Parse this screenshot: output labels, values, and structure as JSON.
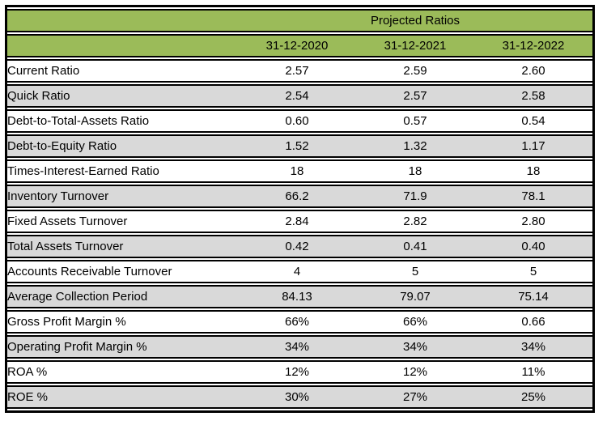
{
  "table": {
    "title": "Projected Ratios",
    "columns": [
      "31-12-2020",
      "31-12-2021",
      "31-12-2022"
    ],
    "rows": [
      {
        "label": "Current Ratio",
        "values": [
          "2.57",
          "2.59",
          "2.60"
        ]
      },
      {
        "label": "Quick Ratio",
        "values": [
          "2.54",
          "2.57",
          "2.58"
        ]
      },
      {
        "label": "Debt-to-Total-Assets Ratio",
        "values": [
          "0.60",
          "0.57",
          "0.54"
        ]
      },
      {
        "label": "Debt-to-Equity Ratio",
        "values": [
          "1.52",
          "1.32",
          "1.17"
        ]
      },
      {
        "label": "Times-Interest-Earned Ratio",
        "values": [
          "18",
          "18",
          "18"
        ]
      },
      {
        "label": "Inventory Turnover",
        "values": [
          "66.2",
          "71.9",
          "78.1"
        ]
      },
      {
        "label": "Fixed Assets Turnover",
        "values": [
          "2.84",
          "2.82",
          "2.80"
        ]
      },
      {
        "label": "Total Assets Turnover",
        "values": [
          "0.42",
          "0.41",
          "0.40"
        ]
      },
      {
        "label": "Accounts Receivable Turnover",
        "values": [
          "4",
          "5",
          "5"
        ]
      },
      {
        "label": "Average Collection Period",
        "values": [
          "84.13",
          "79.07",
          "75.14"
        ]
      },
      {
        "label": "Gross Profit Margin %",
        "values": [
          "66%",
          "66%",
          "0.66"
        ]
      },
      {
        "label": "Operating Profit Margin %",
        "values": [
          "34%",
          "34%",
          "34%"
        ]
      },
      {
        "label": "ROA %",
        "values": [
          "12%",
          "12%",
          "11%"
        ]
      },
      {
        "label": "ROE %",
        "values": [
          "30%",
          "27%",
          "25%"
        ]
      }
    ]
  },
  "colors": {
    "header_green": "#9BBB59",
    "alt_row_gray": "#D9D9D9",
    "row_white": "#FFFFFF",
    "border_black": "#000000"
  }
}
